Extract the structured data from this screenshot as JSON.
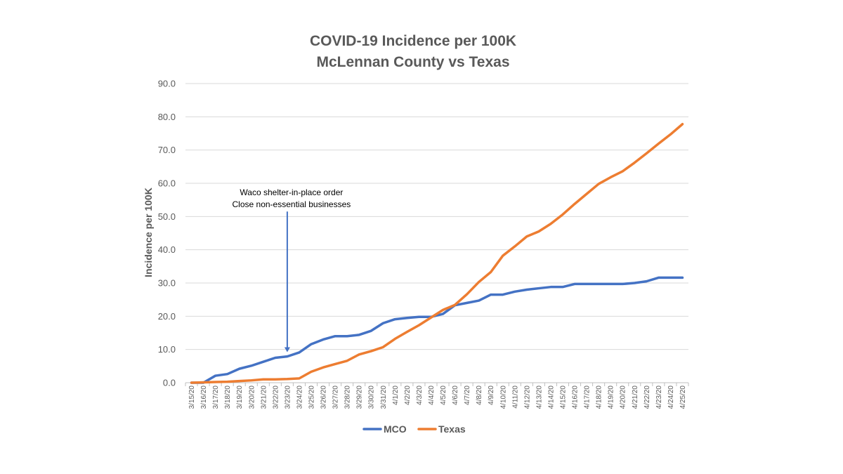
{
  "chart_data": {
    "type": "line",
    "title": [
      "COVID-19 Incidence per 100K",
      "McLennan County vs Texas"
    ],
    "ylabel": "Incidence per 100K",
    "xlabel": "",
    "ylim": [
      0,
      90
    ],
    "yticks": [
      "0.0",
      "10.0",
      "20.0",
      "30.0",
      "40.0",
      "50.0",
      "60.0",
      "70.0",
      "80.0",
      "90.0"
    ],
    "grid": true,
    "legend_position": "bottom",
    "categories": [
      "3/15/20",
      "3/16/20",
      "3/17/20",
      "3/18/20",
      "3/19/20",
      "3/20/20",
      "3/21/20",
      "3/22/20",
      "3/23/20",
      "3/24/20",
      "3/25/20",
      "3/26/20",
      "3/27/20",
      "3/28/20",
      "3/29/20",
      "3/30/20",
      "3/31/20",
      "4/1/20",
      "4/2/20",
      "4/3/20",
      "4/4/20",
      "4/5/20",
      "4/6/20",
      "4/7/20",
      "4/8/20",
      "4/9/20",
      "4/10/20",
      "4/11/20",
      "4/12/20",
      "4/13/20",
      "4/14/20",
      "4/15/20",
      "4/16/20",
      "4/17/20",
      "4/18/20",
      "4/19/20",
      "4/20/20",
      "4/21/20",
      "4/22/20",
      "4/23/20",
      "4/24/20",
      "4/25/20"
    ],
    "series": [
      {
        "name": "MCO",
        "color": "#4472C4",
        "values": [
          0.0,
          0.0,
          2.1,
          2.6,
          4.2,
          5.1,
          6.3,
          7.5,
          7.9,
          9.1,
          11.6,
          13.0,
          14.0,
          14.0,
          14.4,
          15.6,
          17.9,
          19.1,
          19.5,
          19.8,
          19.8,
          20.7,
          23.3,
          24.0,
          24.7,
          26.5,
          26.5,
          27.4,
          28.0,
          28.4,
          28.8,
          28.8,
          29.7,
          29.7,
          29.7,
          29.7,
          29.7,
          30.0,
          30.5,
          31.6,
          31.6,
          31.6
        ]
      },
      {
        "name": "Texas",
        "color": "#ED7D31",
        "values": [
          0.0,
          0.1,
          0.2,
          0.3,
          0.5,
          0.7,
          1.0,
          1.0,
          1.1,
          1.3,
          3.3,
          4.6,
          5.6,
          6.6,
          8.5,
          9.5,
          10.7,
          13.2,
          15.3,
          17.3,
          19.6,
          21.9,
          23.4,
          26.6,
          30.3,
          33.3,
          38.2,
          41.0,
          44.0,
          45.5,
          47.8,
          50.6,
          53.8,
          56.8,
          59.8,
          61.8,
          63.6,
          66.2,
          69.0,
          71.9,
          74.7,
          77.8
        ]
      }
    ],
    "annotations": [
      {
        "lines": [
          "Waco shelter-in-place order",
          "Close non-essential businesses"
        ],
        "arrow_category": "3/23/20",
        "arrow_from_value": 51.5,
        "arrow_to_value": 9.2
      }
    ]
  }
}
